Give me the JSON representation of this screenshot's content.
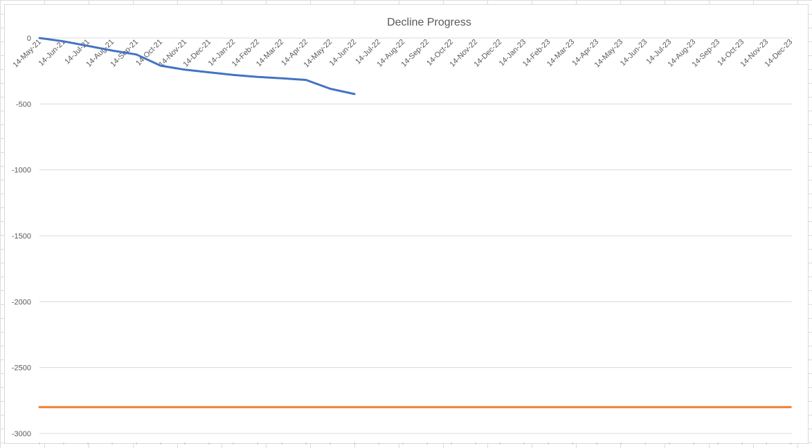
{
  "chart_data": {
    "type": "line",
    "title": "Decline Progress",
    "xlabel": "",
    "ylabel": "",
    "ylim": [
      -3000,
      0
    ],
    "yticks": [
      0,
      -500,
      -1000,
      -1500,
      -2000,
      -2500,
      -3000
    ],
    "gridlines": true,
    "legend": "none",
    "categories": [
      "14-May-21",
      "14-Jun-21",
      "14-Jul-21",
      "14-Aug-21",
      "14-Sep-21",
      "14-Oct-21",
      "14-Nov-21",
      "14-Dec-21",
      "14-Jan-22",
      "14-Feb-22",
      "14-Mar-22",
      "14-Apr-22",
      "14-May-22",
      "14-Jun-22",
      "14-Jul-22",
      "14-Aug-22",
      "14-Sep-22",
      "14-Oct-22",
      "14-Nov-22",
      "14-Dec-22",
      "14-Jan-23",
      "14-Feb-23",
      "14-Mar-23",
      "14-Apr-23",
      "14-May-23",
      "14-Jun-23",
      "14-Jul-23",
      "14-Aug-23",
      "14-Sep-23",
      "14-Oct-23",
      "14-Nov-23",
      "14-Dec-23"
    ],
    "series": [
      {
        "color": "#4472C4",
        "points": [
          {
            "x": "14-May-21",
            "y": 0
          },
          {
            "x": "14-Jun-21",
            "y": -25
          },
          {
            "x": "14-Jul-21",
            "y": -60
          },
          {
            "x": "14-Aug-21",
            "y": -95
          },
          {
            "x": "14-Sep-21",
            "y": -125
          },
          {
            "x": "14-Oct-21",
            "y": -210
          },
          {
            "x": "14-Nov-21",
            "y": -240
          },
          {
            "x": "14-Dec-21",
            "y": -260
          },
          {
            "x": "14-Jan-22",
            "y": -280
          },
          {
            "x": "14-Feb-22",
            "y": -295
          },
          {
            "x": "14-Mar-22",
            "y": -305
          },
          {
            "x": "14-Apr-22",
            "y": -318
          },
          {
            "x": "14-May-22",
            "y": -385
          },
          {
            "x": "14-Jun-22",
            "y": -425
          }
        ]
      },
      {
        "color": "#ED7D31",
        "points": [
          {
            "x": "14-May-21",
            "y": -2800
          },
          {
            "x": "14-Dec-23",
            "y": -2800
          }
        ]
      }
    ]
  }
}
